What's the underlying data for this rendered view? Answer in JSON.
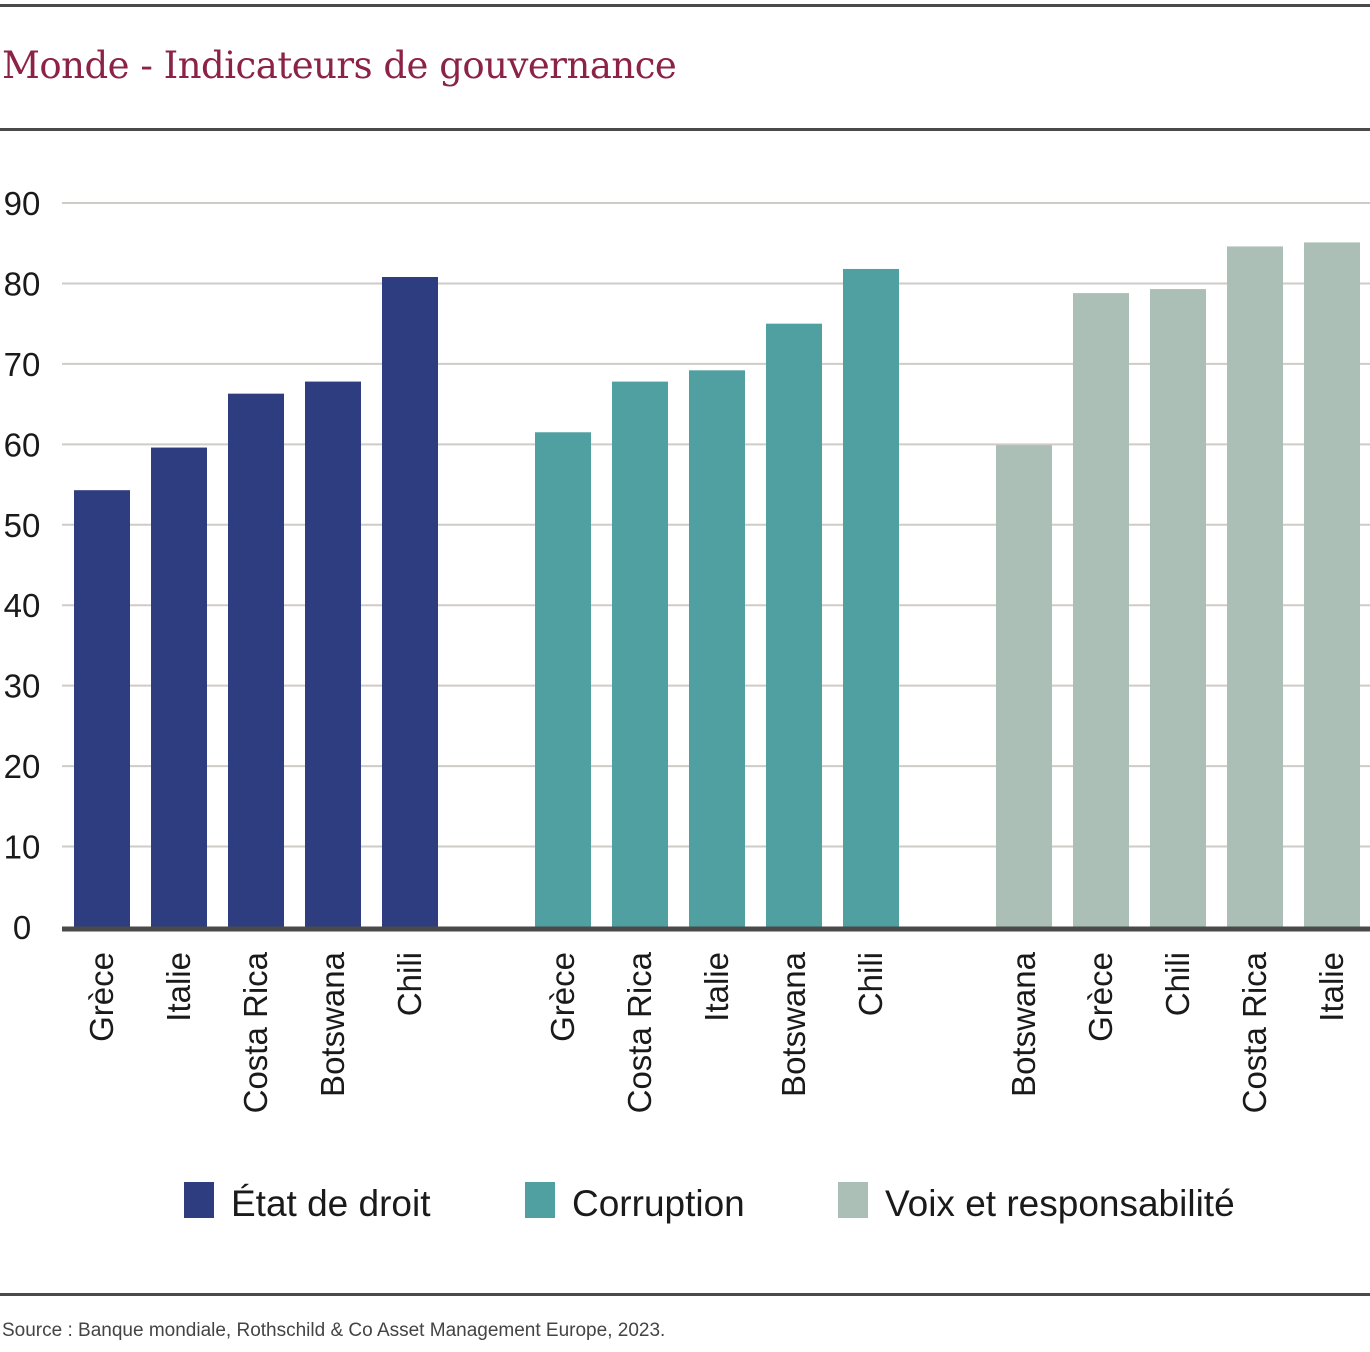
{
  "title": "Monde - Indicateurs de gouvernance",
  "source": "Source : Banque mondiale,  Rothschild & Co Asset Management Europe, 2023.",
  "chart_data": {
    "type": "bar",
    "ylim": [
      0,
      90
    ],
    "yticks": [
      0,
      10,
      20,
      30,
      40,
      50,
      60,
      70,
      80,
      90
    ],
    "grid": true,
    "legend_position": "bottom",
    "series": [
      {
        "name": "État de droit",
        "color": "#2e3d80",
        "categories": [
          "Grèce",
          "Italie",
          "Costa Rica",
          "Botswana",
          "Chili"
        ],
        "values": [
          54.3,
          59.6,
          66.3,
          67.8,
          80.8
        ]
      },
      {
        "name": "Corruption",
        "color": "#50a0a2",
        "categories": [
          "Grèce",
          "Costa Rica",
          "Italie",
          "Botswana",
          "Chili"
        ],
        "values": [
          61.5,
          67.8,
          69.2,
          75.0,
          81.8
        ]
      },
      {
        "name": "Voix et responsabilité",
        "color": "#abbfb6",
        "categories": [
          "Botswana",
          "Grèce",
          "Chili",
          "Costa Rica",
          "Italie"
        ],
        "values": [
          59.9,
          78.8,
          79.3,
          84.6,
          85.1
        ]
      }
    ]
  }
}
